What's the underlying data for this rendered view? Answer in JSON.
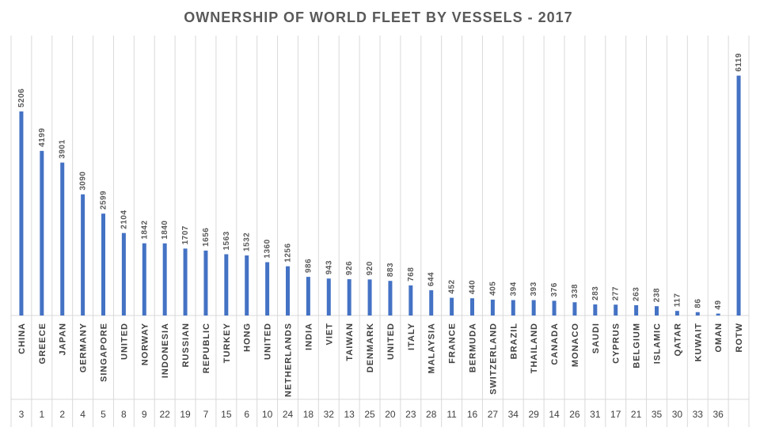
{
  "chart_data": {
    "type": "bar",
    "title": "OWNERSHIP OF WORLD FLEET BY VESSELS - 2017",
    "categories": [
      "CHINA",
      "GREECE",
      "JAPAN",
      "GERMANY",
      "SINGAPORE",
      "UNITED",
      "NORWAY",
      "INDONESIA",
      "RUSSIAN",
      "REPUBLIC",
      "TURKEY",
      "HONG",
      "UNITED",
      "NETHERLANDS",
      "INDIA",
      "VIET",
      "TAIWAN",
      "DENMARK",
      "UNITED",
      "ITALY",
      "MALAYSIA",
      "FRANCE",
      "BERMUDA",
      "SWITZERLAND",
      "BRAZIL",
      "THAILAND",
      "CANADA",
      "MONACO",
      "SAUDI",
      "CYPRUS",
      "BELGIUM",
      "ISLAMIC",
      "QATAR",
      "KUWAIT",
      "OMAN",
      "ROTW"
    ],
    "values": [
      5206,
      4199,
      3901,
      3090,
      2599,
      2104,
      1842,
      1840,
      1707,
      1656,
      1563,
      1532,
      1360,
      1256,
      986,
      943,
      926,
      920,
      883,
      768,
      644,
      452,
      440,
      405,
      394,
      393,
      376,
      338,
      283,
      277,
      263,
      238,
      117,
      86,
      49,
      6119
    ],
    "ranks": [
      "3",
      "1",
      "2",
      "4",
      "5",
      "8",
      "9",
      "22",
      "19",
      "7",
      "15",
      "6",
      "10",
      "24",
      "18",
      "32",
      "13",
      "25",
      "20",
      "23",
      "28",
      "11",
      "16",
      "27",
      "34",
      "29",
      "14",
      "26",
      "31",
      "17",
      "21",
      "35",
      "30",
      "33",
      "36"
    ],
    "ylim": [
      0,
      7000
    ],
    "bar_color": "#4472C4",
    "grid": false
  }
}
